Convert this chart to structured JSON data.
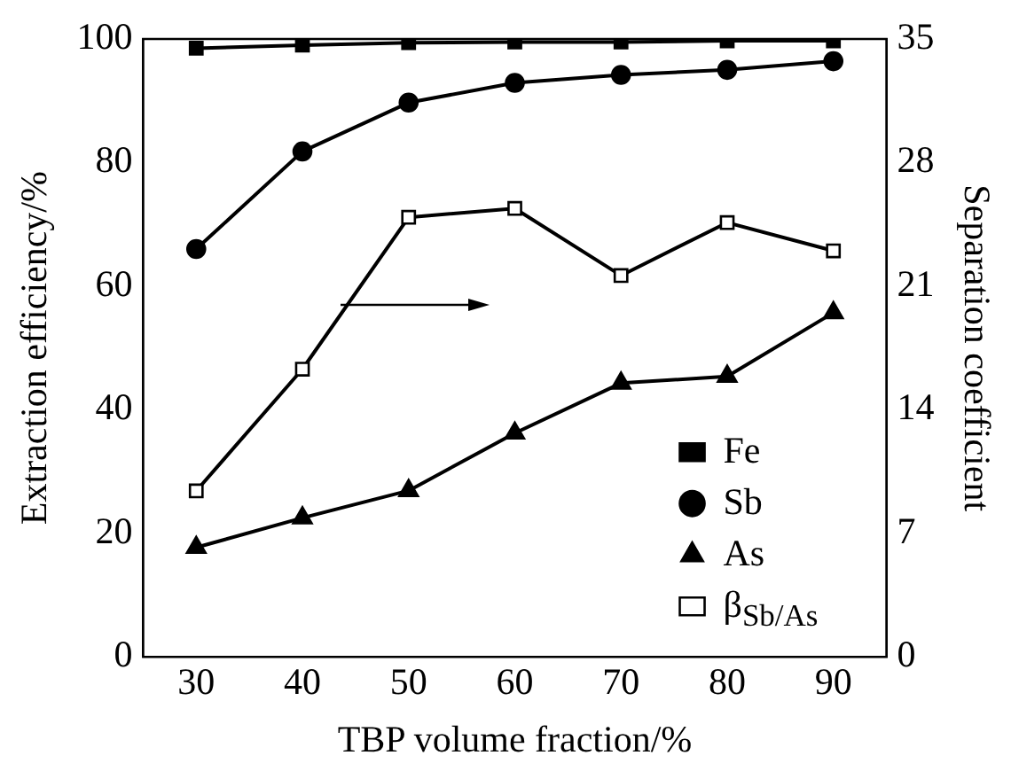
{
  "chart_data": {
    "type": "line",
    "xlabel": "TBP volume fraction/%",
    "ylabel": "Extraction efficiency/%",
    "y2label": "Separation coefficient",
    "x": [
      30,
      40,
      50,
      60,
      70,
      80,
      90
    ],
    "series": [
      {
        "name": "Fe",
        "color": "#000000",
        "marker": "square",
        "values": [
          98.5,
          99.0,
          99.4,
          99.5,
          99.5,
          99.7,
          99.7
        ]
      },
      {
        "name": "Sb",
        "color": "#000000",
        "marker": "circle",
        "values": [
          66.0,
          81.8,
          89.7,
          92.9,
          94.2,
          95.0,
          96.4
        ]
      },
      {
        "name": "As",
        "color": "#000000",
        "marker": "triangle",
        "values": [
          17.7,
          22.5,
          26.9,
          36.2,
          44.3,
          45.4,
          55.7
        ]
      },
      {
        "name": "β$_{Sb/As}$",
        "color": "#000000",
        "marker": "square",
        "axis": "y2",
        "values": [
          9.4,
          16.3,
          24.9,
          25.4,
          21.6,
          24.6,
          23.0
        ]
      }
    ],
    "xlim": [
      25,
      95
    ],
    "xticks": [
      30,
      40,
      50,
      60,
      70,
      80,
      90
    ],
    "ylim": [
      0,
      100
    ],
    "yticks": [
      0,
      20,
      40,
      60,
      80,
      100
    ],
    "y2lim": [
      0,
      35
    ],
    "y2ticks": [
      0,
      7,
      14,
      21,
      28,
      35
    ],
    "grid": false,
    "legend": "bottom right",
    "line_style": "solid"
  }
}
